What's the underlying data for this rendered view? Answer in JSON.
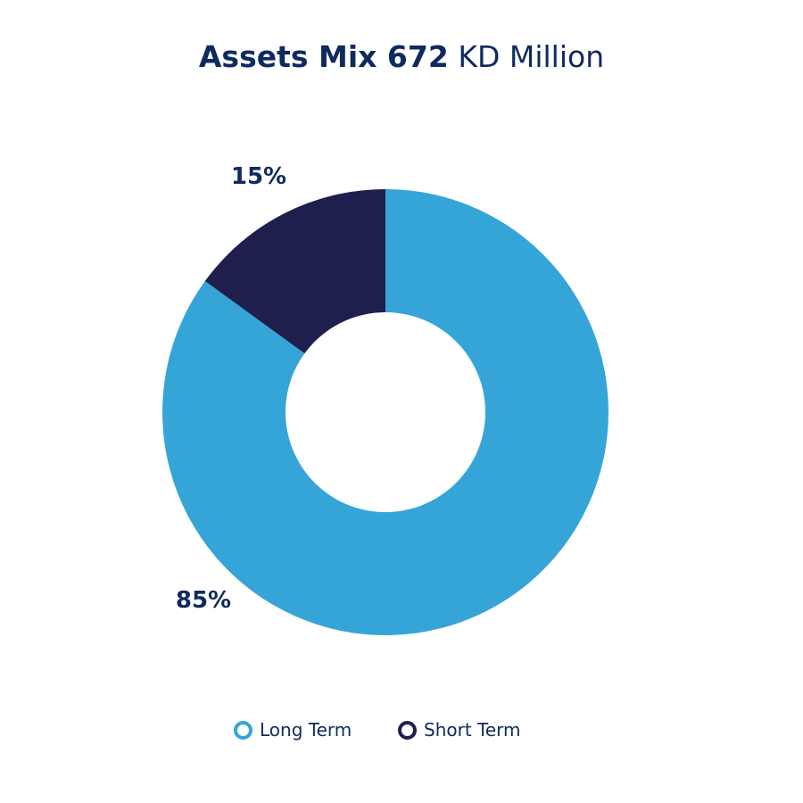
{
  "title": {
    "bold": "Assets Mix 672",
    "light": "KD Million"
  },
  "colors": {
    "long_term": "#35a5d8",
    "short_term": "#1e1f4d",
    "text": "#0f2a5f"
  },
  "chart_data": {
    "type": "pie",
    "donut": true,
    "title": "Assets Mix 672 KD Million",
    "categories": [
      "Long Term",
      "Short Term"
    ],
    "values": [
      85,
      15
    ],
    "labels": [
      "85%",
      "15%"
    ],
    "legend": "bottom",
    "start_angle": "12 o'clock",
    "direction": "clockwise"
  },
  "legend": {
    "items": [
      {
        "label": "Long Term",
        "color": "#35a5d8"
      },
      {
        "label": "Short Term",
        "color": "#1e1f4d"
      }
    ]
  }
}
